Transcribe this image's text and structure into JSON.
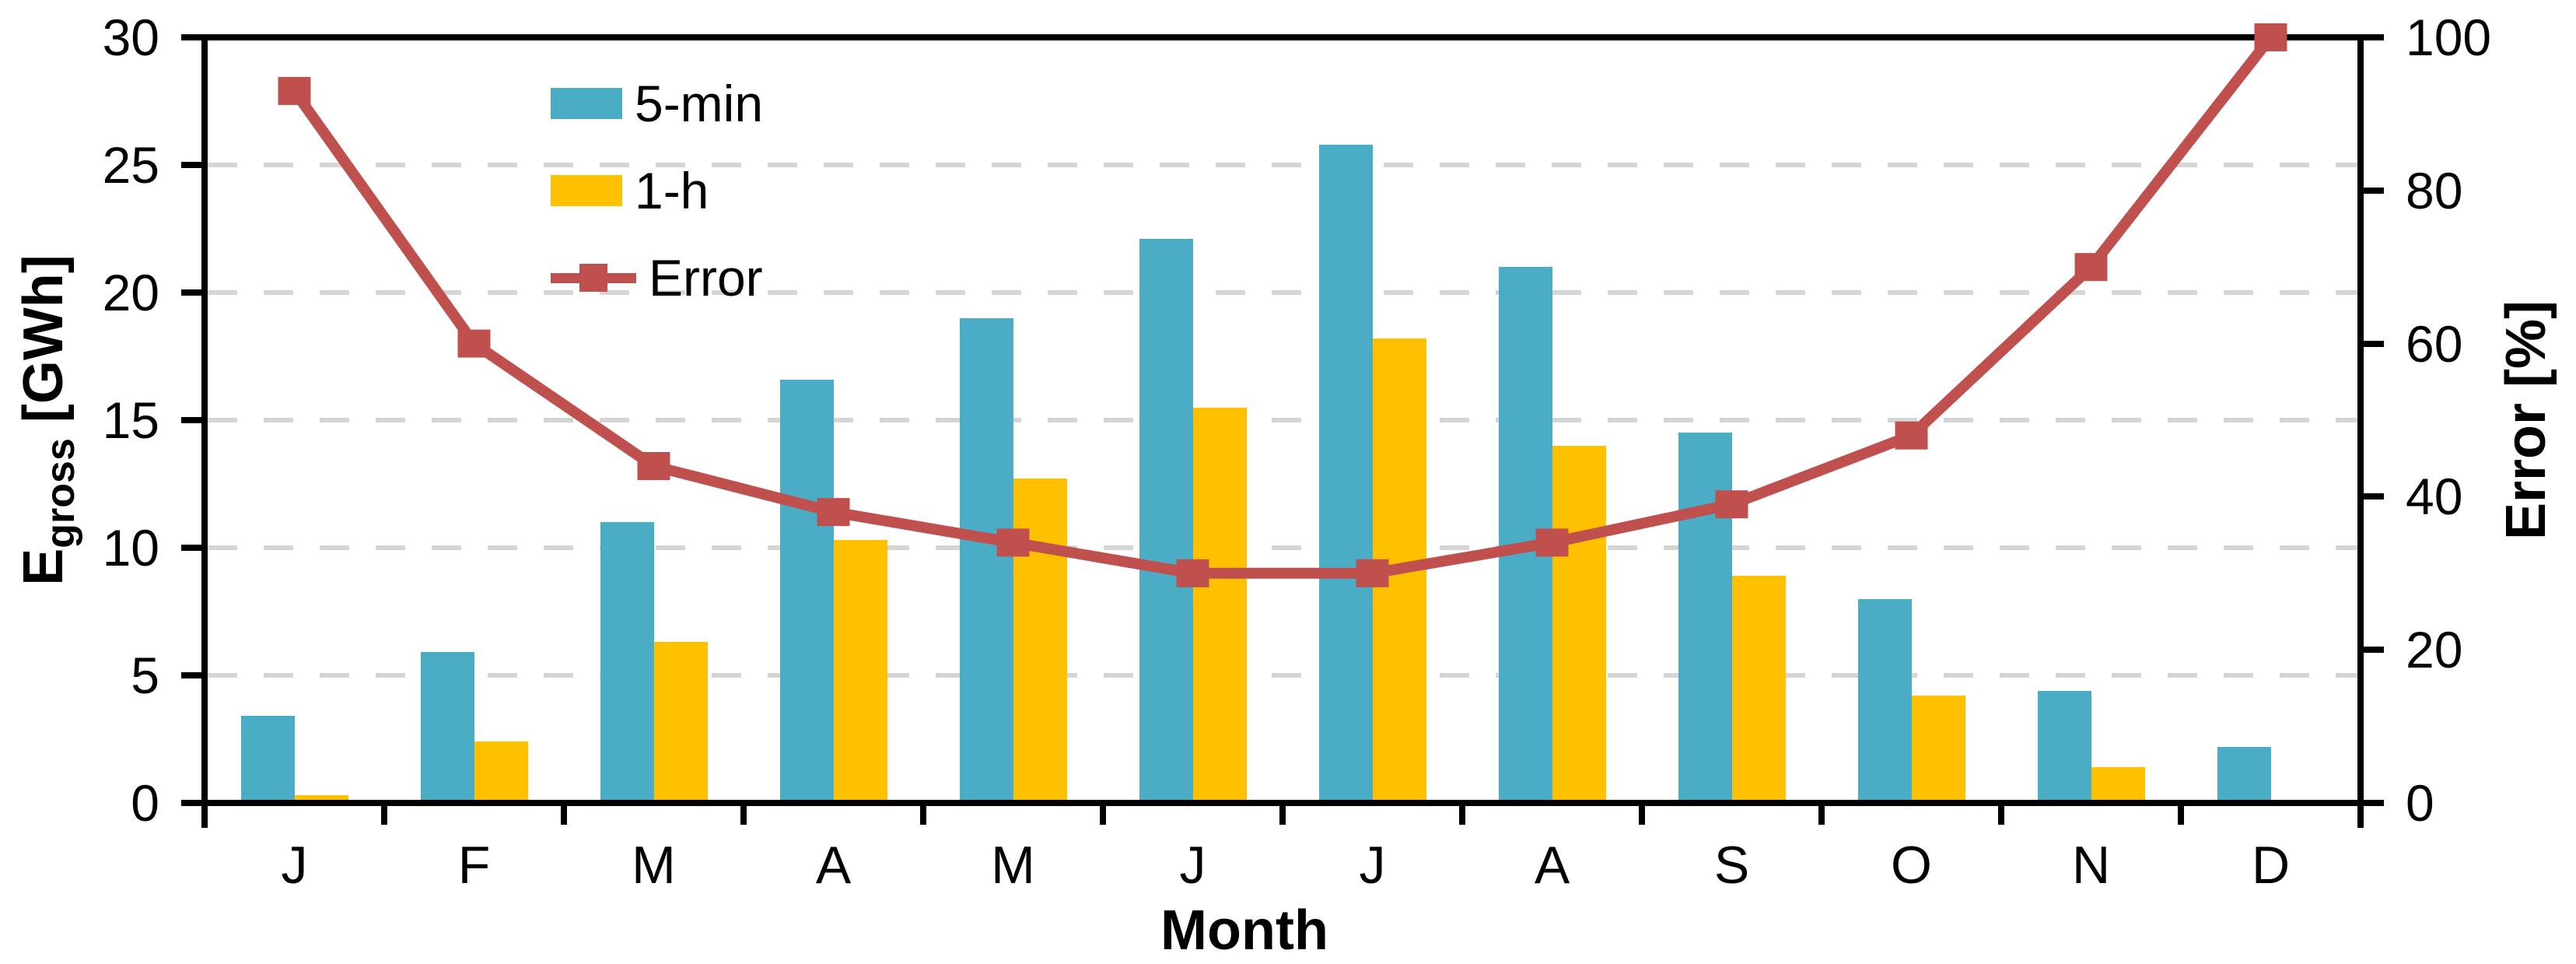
{
  "chart_data": {
    "type": "bar+line",
    "categories": [
      "J",
      "F",
      "M",
      "A",
      "M",
      "J",
      "J",
      "A",
      "S",
      "O",
      "N",
      "D"
    ],
    "series": [
      {
        "name": "5-min",
        "type": "bar",
        "axis": "left",
        "color": "#4BACC6",
        "values": [
          3.4,
          5.9,
          11.0,
          16.6,
          19.0,
          22.1,
          25.8,
          21.0,
          14.5,
          8.0,
          4.4,
          2.2
        ]
      },
      {
        "name": "1-h",
        "type": "bar",
        "axis": "left",
        "color": "#FFC000",
        "values": [
          0.3,
          2.4,
          6.3,
          10.3,
          12.7,
          15.5,
          18.2,
          14.0,
          8.9,
          4.2,
          1.4,
          0
        ]
      },
      {
        "name": "Error",
        "type": "line",
        "axis": "right",
        "color": "#C0504D",
        "values": [
          93,
          60,
          44,
          38,
          34,
          30,
          30,
          34,
          39,
          48,
          70,
          100
        ]
      }
    ],
    "left_axis": {
      "label_main": "E",
      "label_sub": "gross",
      "label_unit": " [GWh]",
      "min": 0,
      "max": 30,
      "ticks": [
        0,
        5,
        10,
        15,
        20,
        25,
        30
      ]
    },
    "right_axis": {
      "label": "Error [%]",
      "min": 0,
      "max": 100,
      "ticks": [
        0,
        20,
        40,
        60,
        80,
        100
      ]
    },
    "x_axis": {
      "label": "Month"
    },
    "grid": {
      "at": [
        5,
        10,
        15,
        20,
        25
      ],
      "color": "#d5d5d5",
      "style": "dashed"
    },
    "legend": {
      "position": "top-inside-left"
    },
    "frame_color": "#000000",
    "background": "#ffffff"
  }
}
